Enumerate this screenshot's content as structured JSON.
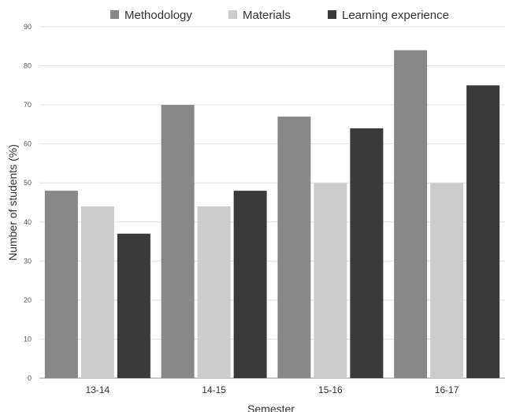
{
  "chart_data": {
    "type": "bar",
    "title": "",
    "xlabel": "Semester",
    "ylabel": "Number of students (%)",
    "categories": [
      "13-14",
      "14-15",
      "15-16",
      "16-17"
    ],
    "ylim": [
      0,
      90
    ],
    "yticks": [
      0,
      10,
      20,
      30,
      40,
      50,
      60,
      70,
      80,
      90
    ],
    "grid": true,
    "legend_position": "top",
    "series": [
      {
        "name": "Methodology",
        "color": "#888888",
        "values": [
          48,
          70,
          67,
          84
        ]
      },
      {
        "name": "Materials",
        "color": "#cccccc",
        "values": [
          44,
          44,
          50,
          50
        ]
      },
      {
        "name": "Learning experience",
        "color": "#3a3a3a",
        "values": [
          37,
          48,
          64,
          75
        ]
      }
    ]
  }
}
